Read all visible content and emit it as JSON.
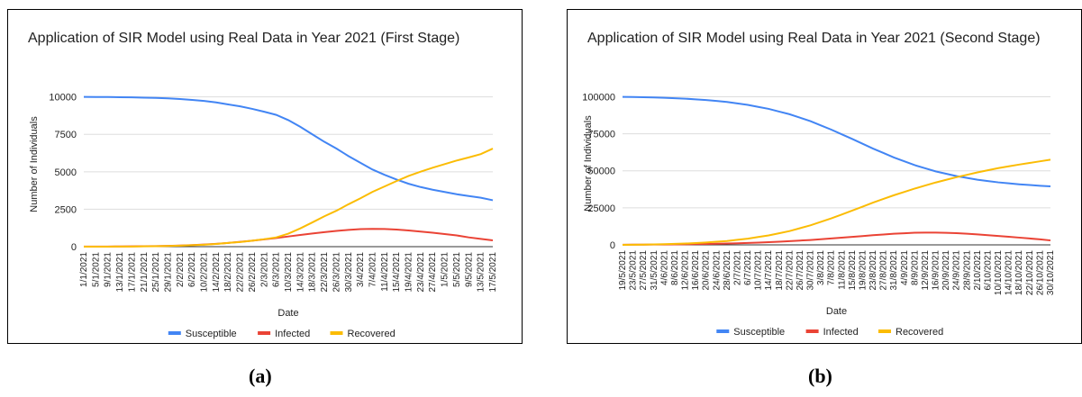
{
  "chart_data": [
    {
      "type": "line",
      "title": "Application of SIR Model using Real Data in Year 2021 (First Stage)",
      "x_label": "Date",
      "y_label": "Number of Individuals",
      "categories": [
        "1/1/2021",
        "5/1/2021",
        "9/1/2021",
        "13/1/2021",
        "17/1/2021",
        "21/1/2021",
        "25/1/2021",
        "29/1/2021",
        "2/2/2021",
        "6/2/2021",
        "10/2/2021",
        "14/2/2021",
        "18/2/2021",
        "22/2/2021",
        "26/2/2021",
        "2/3/2021",
        "6/3/2021",
        "10/3/2021",
        "14/3/2021",
        "18/3/2021",
        "22/3/2021",
        "26/3/2021",
        "30/3/2021",
        "3/4/2021",
        "7/4/2021",
        "11/4/2021",
        "15/4/2021",
        "19/4/2021",
        "23/4/2021",
        "27/4/2021",
        "1/5/2021",
        "5/5/2021",
        "9/5/2021",
        "13/5/2021",
        "17/5/2021"
      ],
      "series": [
        {
          "name": "Susceptible",
          "color": "#4285f4",
          "values": [
            10000,
            9995,
            9990,
            9980,
            9970,
            9950,
            9930,
            9900,
            9860,
            9800,
            9730,
            9630,
            9500,
            9370,
            9200,
            9010,
            8800,
            8450,
            8000,
            7500,
            7000,
            6550,
            6050,
            5600,
            5150,
            4800,
            4480,
            4200,
            3980,
            3800,
            3650,
            3500,
            3380,
            3270,
            3100
          ]
        },
        {
          "name": "Infected",
          "color": "#ea4335",
          "values": [
            5,
            7,
            10,
            14,
            20,
            28,
            40,
            55,
            75,
            105,
            140,
            190,
            250,
            320,
            400,
            490,
            580,
            680,
            780,
            880,
            970,
            1050,
            1120,
            1170,
            1190,
            1180,
            1140,
            1080,
            1010,
            930,
            840,
            750,
            620,
            520,
            420
          ]
        },
        {
          "name": "Recovered",
          "color": "#fbbc04",
          "values": [
            0,
            0,
            3,
            6,
            10,
            22,
            30,
            45,
            65,
            95,
            130,
            180,
            250,
            310,
            400,
            500,
            620,
            870,
            1220,
            1620,
            2030,
            2400,
            2830,
            3230,
            3660,
            4020,
            4380,
            4720,
            5010,
            5270,
            5510,
            5750,
            5960,
            6180,
            6550
          ]
        }
      ],
      "ylim": [
        0,
        11000
      ],
      "yticks": [
        0,
        2500,
        5000,
        7500,
        10000
      ],
      "grid": true,
      "legend": "bottom"
    },
    {
      "type": "line",
      "title": "Application of SIR Model using Real Data in Year 2021 (Second Stage)",
      "x_label": "Date",
      "y_label": "Number of Individuals",
      "categories": [
        "19/5/2021",
        "23/5/2021",
        "27/5/2021",
        "31/5/2021",
        "4/6/2021",
        "8/6/2021",
        "12/6/2021",
        "16/6/2021",
        "20/6/2021",
        "24/6/2021",
        "28/6/2021",
        "2/7/2021",
        "6/7/2021",
        "10/7/2021",
        "14/7/2021",
        "18/7/2021",
        "22/7/2021",
        "26/7/2021",
        "30/7/2021",
        "3/8/2021",
        "7/8/2021",
        "11/8/2021",
        "15/8/2021",
        "19/8/2021",
        "23/8/2021",
        "27/8/2021",
        "31/8/2021",
        "4/9/2021",
        "8/9/2021",
        "12/9/2021",
        "16/9/2021",
        "20/9/2021",
        "24/9/2021",
        "28/9/2021",
        "2/10/2021",
        "6/10/2021",
        "10/10/2021",
        "14/10/2021",
        "18/10/2021",
        "22/10/2021",
        "26/10/2021",
        "30/10/2021"
      ],
      "series": [
        {
          "name": "Susceptible",
          "color": "#4285f4",
          "values": [
            99900,
            99800,
            99700,
            99500,
            99300,
            99000,
            98700,
            98250,
            97800,
            97150,
            96500,
            95500,
            94500,
            93150,
            91800,
            90000,
            88200,
            85850,
            83500,
            80650,
            77800,
            74650,
            71500,
            68250,
            65000,
            62000,
            59000,
            56400,
            53800,
            51700,
            49600,
            48000,
            46400,
            45200,
            44000,
            43100,
            42200,
            41550,
            40900,
            40400,
            39900,
            39500
          ]
        },
        {
          "name": "Infected",
          "color": "#ea4335",
          "values": [
            100,
            125,
            150,
            200,
            250,
            325,
            400,
            500,
            600,
            750,
            900,
            1100,
            1300,
            1550,
            1800,
            2150,
            2500,
            2900,
            3300,
            3800,
            4300,
            4850,
            5400,
            5950,
            6500,
            7000,
            7500,
            7850,
            8200,
            8250,
            8300,
            8100,
            7900,
            7500,
            7100,
            6550,
            6000,
            5450,
            4900,
            4300,
            3700,
            3000
          ]
        },
        {
          "name": "Recovered",
          "color": "#fbbc04",
          "values": [
            0,
            75,
            150,
            300,
            450,
            675,
            900,
            1250,
            1600,
            2100,
            2600,
            3400,
            4200,
            5300,
            6400,
            7850,
            9300,
            11250,
            13200,
            15550,
            17900,
            20500,
            23100,
            25800,
            28500,
            31000,
            33500,
            35750,
            38000,
            40050,
            42100,
            43900,
            45700,
            47300,
            48900,
            50350,
            51800,
            53000,
            54200,
            55300,
            56400,
            57500
          ]
        }
      ],
      "ylim": [
        0,
        110000
      ],
      "yticks": [
        0,
        25000,
        50000,
        75000,
        100000
      ],
      "grid": true,
      "legend": "bottom"
    }
  ],
  "captions": [
    "(a)",
    "(b)"
  ]
}
